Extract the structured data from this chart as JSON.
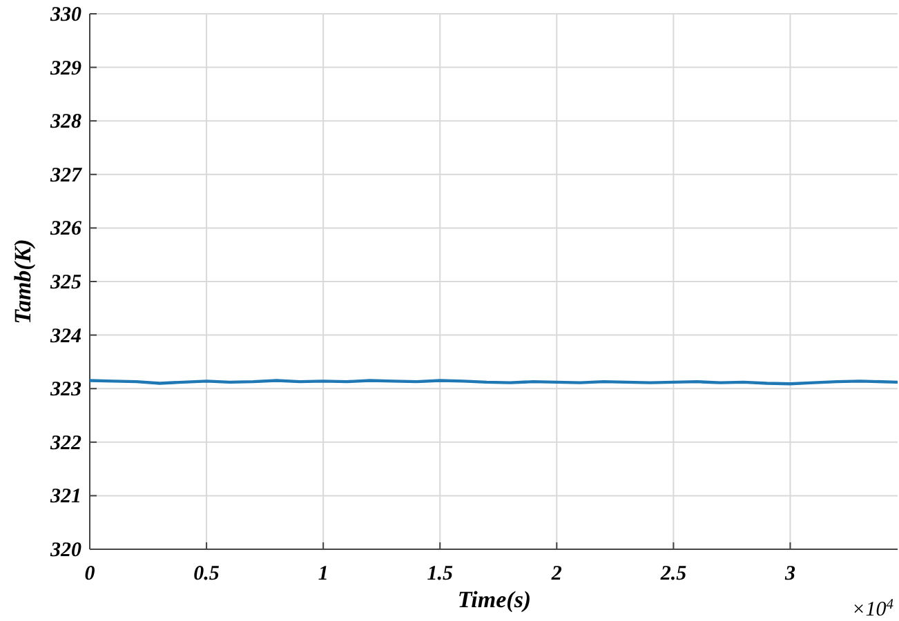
{
  "chart_data": {
    "type": "line",
    "xlabel": "Time(s)",
    "ylabel": "Tamb(K)",
    "annotations": [
      "×10$^{4}$"
    ],
    "xlim": [
      0,
      3.46
    ],
    "ylim": [
      320,
      330
    ],
    "xticks": [
      0,
      0.5,
      1,
      1.5,
      2,
      2.5,
      3
    ],
    "yticks": [
      320,
      321,
      322,
      323,
      324,
      325,
      326,
      327,
      328,
      329,
      330
    ],
    "grid": true,
    "series": [
      {
        "color": "#1f77b4",
        "x": [
          0,
          0.1,
          0.2,
          0.3,
          0.4,
          0.5,
          0.6,
          0.7,
          0.8,
          0.9,
          1,
          1.1,
          1.2,
          1.3,
          1.4,
          1.5,
          1.6,
          1.7,
          1.8,
          1.9,
          2,
          2.1,
          2.2,
          2.3,
          2.4,
          2.5,
          2.6,
          2.7,
          2.8,
          2.9,
          3,
          3.1,
          3.2,
          3.3,
          3.46
        ],
        "values": [
          323.15,
          323.14,
          323.13,
          323.1,
          323.12,
          323.14,
          323.12,
          323.13,
          323.15,
          323.13,
          323.14,
          323.13,
          323.15,
          323.14,
          323.13,
          323.15,
          323.14,
          323.12,
          323.11,
          323.13,
          323.12,
          323.11,
          323.13,
          323.12,
          323.11,
          323.12,
          323.13,
          323.11,
          323.12,
          323.1,
          323.09,
          323.11,
          323.13,
          323.14,
          323.12
        ]
      }
    ]
  }
}
